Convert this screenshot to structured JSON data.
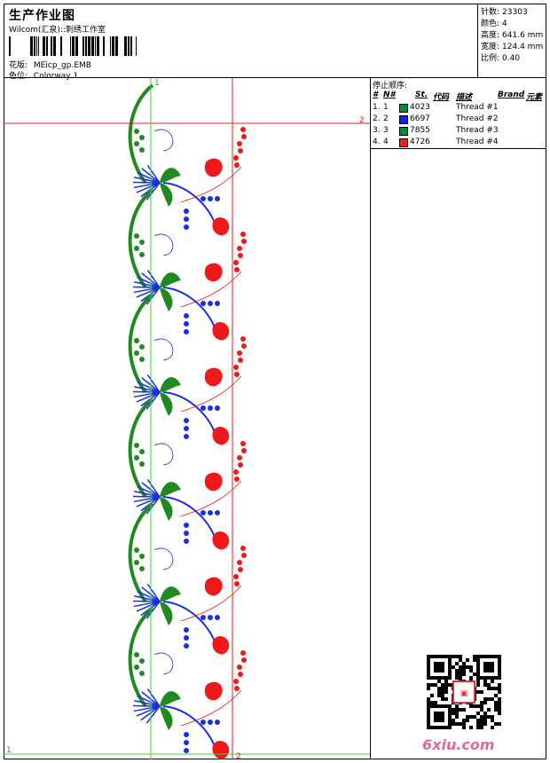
{
  "header": {
    "title": "生产作业图",
    "studio": "Wilcom(汇泉)::刺绣工作室",
    "design_label": "花版:",
    "design_file": "MEicp_gp.EMB",
    "colorway_label": "色位:",
    "colorway": "Colorway 1"
  },
  "stats": [
    {
      "label": "针数:",
      "value": "23303"
    },
    {
      "label": "颜色:",
      "value": "4"
    },
    {
      "label": "高度:",
      "value": "641.6 mm"
    },
    {
      "label": "宽度:",
      "value": "124.4 mm"
    },
    {
      "label": "比例:",
      "value": "0.40"
    }
  ],
  "legend": {
    "title": "停止顺序:",
    "columns": [
      "#",
      "N#",
      "St.",
      "代码",
      "描述",
      "Brand",
      "元素"
    ],
    "rows": [
      {
        "index": "1.",
        "needle": "1",
        "color": "#00893a",
        "code": "4023",
        "desc": "Thread #1"
      },
      {
        "index": "2.",
        "needle": "2",
        "color": "#1a1aff",
        "code": "6697",
        "desc": "Thread #2"
      },
      {
        "index": "3.",
        "needle": "3",
        "color": "#00893a",
        "code": "7855",
        "desc": "Thread #3"
      },
      {
        "index": "4.",
        "needle": "4",
        "color": "#ff1a1a",
        "code": "4726",
        "desc": "Thread #4"
      }
    ]
  },
  "guides": {
    "green_label_top": "1",
    "red_label_right": "2",
    "green_label_bottom": "1",
    "red_label_bottom": "2"
  },
  "colors": {
    "green": "#1f8a1f",
    "blue": "#1a2fe0",
    "red": "#f01818",
    "guide_green": "#33dd33",
    "guide_red": "#dd2222"
  },
  "watermark": "6xiu.com"
}
